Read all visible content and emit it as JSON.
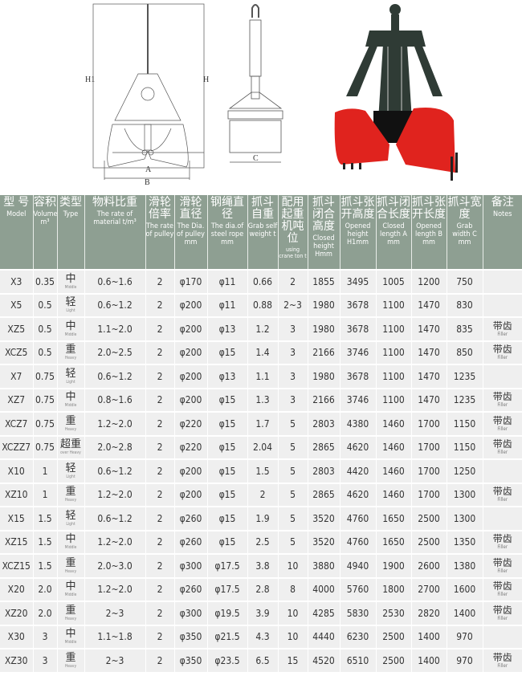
{
  "diagram_labels": {
    "h1": "H1",
    "h": "H",
    "a": "A",
    "b": "B",
    "c": "C"
  },
  "colors": {
    "header_bg": "#8e9f92",
    "row_bg": "#efefef",
    "grab_red": "#e0231e",
    "grab_frame": "#2f3b35"
  },
  "table": {
    "headers": [
      {
        "cn": "型 号",
        "en": "Model"
      },
      {
        "cn": "容积",
        "en": "Volume m³"
      },
      {
        "cn": "类型",
        "en": "Type"
      },
      {
        "cn": "物料比重",
        "en": "The rate of material t/m³"
      },
      {
        "cn": "滑轮倍率",
        "en": "The rate of pulley"
      },
      {
        "cn": "滑轮直径",
        "en": "The Dia. of pulley mm"
      },
      {
        "cn": "钢绳直径",
        "en": "The dia.of steel rope mm"
      },
      {
        "cn": "抓斗自重",
        "en": "Grab self weight t"
      },
      {
        "cn": "配用起重机吨位",
        "en": "using crane ton t"
      },
      {
        "cn": "抓斗闭合高度",
        "en": "Closed height Hmm"
      },
      {
        "cn": "抓斗张开高度",
        "en": "Opened height H1mm"
      },
      {
        "cn": "抓斗闭合长度",
        "en": "Closed length A mm"
      },
      {
        "cn": "抓斗张开长度",
        "en": "Opened length B mm"
      },
      {
        "cn": "抓斗宽度",
        "en": "Grab width C mm"
      },
      {
        "cn": "备注",
        "en": "Notes"
      }
    ],
    "rows": [
      {
        "model": "X3",
        "volume": "0.35",
        "type_cn": "中",
        "type_en": "Middle",
        "material": "0.6~1.6",
        "pulley_rate": "2",
        "pulley_dia": "φ170",
        "rope_dia": "φ11",
        "weight": "0.66",
        "crane": "2",
        "closed_h": "1855",
        "opened_h": "3495",
        "closed_l": "1005",
        "opened_l": "1200",
        "width": "750",
        "note_cn": "",
        "note_en": ""
      },
      {
        "model": "X5",
        "volume": "0.5",
        "type_cn": "轻",
        "type_en": "Light",
        "material": "0.6~1.2",
        "pulley_rate": "2",
        "pulley_dia": "φ200",
        "rope_dia": "φ11",
        "weight": "0.88",
        "crane": "2~3",
        "closed_h": "1980",
        "opened_h": "3678",
        "closed_l": "1100",
        "opened_l": "1470",
        "width": "830",
        "note_cn": "",
        "note_en": ""
      },
      {
        "model": "XZ5",
        "volume": "0.5",
        "type_cn": "中",
        "type_en": "Middle",
        "material": "1.1~2.0",
        "pulley_rate": "2",
        "pulley_dia": "φ200",
        "rope_dia": "φ13",
        "weight": "1.2",
        "crane": "3",
        "closed_h": "1980",
        "opened_h": "3678",
        "closed_l": "1100",
        "opened_l": "1470",
        "width": "835",
        "note_cn": "带齿",
        "note_en": "Filler"
      },
      {
        "model": "XCZ5",
        "volume": "0.5",
        "type_cn": "重",
        "type_en": "Heavy",
        "material": "2.0~2.5",
        "pulley_rate": "2",
        "pulley_dia": "φ200",
        "rope_dia": "φ15",
        "weight": "1.4",
        "crane": "3",
        "closed_h": "2166",
        "opened_h": "3746",
        "closed_l": "1100",
        "opened_l": "1470",
        "width": "850",
        "note_cn": "带齿",
        "note_en": "Filler"
      },
      {
        "model": "X7",
        "volume": "0.75",
        "type_cn": "轻",
        "type_en": "Light",
        "material": "0.6~1.2",
        "pulley_rate": "2",
        "pulley_dia": "φ200",
        "rope_dia": "φ13",
        "weight": "1.1",
        "crane": "3",
        "closed_h": "1980",
        "opened_h": "3678",
        "closed_l": "1100",
        "opened_l": "1470",
        "width": "1235",
        "note_cn": "",
        "note_en": ""
      },
      {
        "model": "XZ7",
        "volume": "0.75",
        "type_cn": "中",
        "type_en": "Middle",
        "material": "0.8~1.6",
        "pulley_rate": "2",
        "pulley_dia": "φ200",
        "rope_dia": "φ15",
        "weight": "1.3",
        "crane": "3",
        "closed_h": "2166",
        "opened_h": "3746",
        "closed_l": "1100",
        "opened_l": "1470",
        "width": "1235",
        "note_cn": "带齿",
        "note_en": "Filler"
      },
      {
        "model": "XCZ7",
        "volume": "0.75",
        "type_cn": "重",
        "type_en": "Heavy",
        "material": "1.2~2.0",
        "pulley_rate": "2",
        "pulley_dia": "φ220",
        "rope_dia": "φ15",
        "weight": "1.7",
        "crane": "5",
        "closed_h": "2803",
        "opened_h": "4380",
        "closed_l": "1460",
        "opened_l": "1700",
        "width": "1150",
        "note_cn": "带齿",
        "note_en": "Filler"
      },
      {
        "model": "XCZZ7",
        "volume": "0.75",
        "type_cn": "超重",
        "type_en": "over Heavy",
        "material": "2.0~2.8",
        "pulley_rate": "2",
        "pulley_dia": "φ220",
        "rope_dia": "φ15",
        "weight": "2.04",
        "crane": "5",
        "closed_h": "2865",
        "opened_h": "4620",
        "closed_l": "1460",
        "opened_l": "1700",
        "width": "1150",
        "note_cn": "带齿",
        "note_en": "Filler"
      },
      {
        "model": "X10",
        "volume": "1",
        "type_cn": "轻",
        "type_en": "Light",
        "material": "0.6~1.2",
        "pulley_rate": "2",
        "pulley_dia": "φ200",
        "rope_dia": "φ15",
        "weight": "1.5",
        "crane": "5",
        "closed_h": "2803",
        "opened_h": "4420",
        "closed_l": "1460",
        "opened_l": "1700",
        "width": "1250",
        "note_cn": "",
        "note_en": ""
      },
      {
        "model": "XZ10",
        "volume": "1",
        "type_cn": "重",
        "type_en": "Heavy",
        "material": "1.2~2.0",
        "pulley_rate": "2",
        "pulley_dia": "φ200",
        "rope_dia": "φ15",
        "weight": "2",
        "crane": "5",
        "closed_h": "2865",
        "opened_h": "4620",
        "closed_l": "1460",
        "opened_l": "1700",
        "width": "1300",
        "note_cn": "带齿",
        "note_en": "Filler"
      },
      {
        "model": "X15",
        "volume": "1.5",
        "type_cn": "轻",
        "type_en": "Light",
        "material": "0.6~1.2",
        "pulley_rate": "2",
        "pulley_dia": "φ260",
        "rope_dia": "φ15",
        "weight": "1.9",
        "crane": "5",
        "closed_h": "3520",
        "opened_h": "4760",
        "closed_l": "1650",
        "opened_l": "2500",
        "width": "1300",
        "note_cn": "",
        "note_en": ""
      },
      {
        "model": "XZ15",
        "volume": "1.5",
        "type_cn": "中",
        "type_en": "Middle",
        "material": "1.2~2.0",
        "pulley_rate": "2",
        "pulley_dia": "φ260",
        "rope_dia": "φ15",
        "weight": "2.5",
        "crane": "5",
        "closed_h": "3520",
        "opened_h": "4760",
        "closed_l": "1650",
        "opened_l": "2500",
        "width": "1350",
        "note_cn": "带齿",
        "note_en": "Filler"
      },
      {
        "model": "XCZ15",
        "volume": "1.5",
        "type_cn": "重",
        "type_en": "Heavy",
        "material": "2.0~3.0",
        "pulley_rate": "2",
        "pulley_dia": "φ300",
        "rope_dia": "φ17.5",
        "weight": "3.8",
        "crane": "10",
        "closed_h": "3880",
        "opened_h": "4940",
        "closed_l": "1900",
        "opened_l": "2600",
        "width": "1380",
        "note_cn": "带齿",
        "note_en": "Filler"
      },
      {
        "model": "X20",
        "volume": "2.0",
        "type_cn": "中",
        "type_en": "Middle",
        "material": "1.2~2.0",
        "pulley_rate": "2",
        "pulley_dia": "φ260",
        "rope_dia": "φ17.5",
        "weight": "2.8",
        "crane": "8",
        "closed_h": "4000",
        "opened_h": "5760",
        "closed_l": "1800",
        "opened_l": "2700",
        "width": "1600",
        "note_cn": "带齿",
        "note_en": "Filler"
      },
      {
        "model": "XZ20",
        "volume": "2.0",
        "type_cn": "重",
        "type_en": "Heavy",
        "material": "2~3",
        "pulley_rate": "2",
        "pulley_dia": "φ300",
        "rope_dia": "φ19.5",
        "weight": "3.9",
        "crane": "10",
        "closed_h": "4285",
        "opened_h": "5830",
        "closed_l": "2530",
        "opened_l": "2820",
        "width": "1400",
        "note_cn": "带齿",
        "note_en": "Filler"
      },
      {
        "model": "X30",
        "volume": "3",
        "type_cn": "中",
        "type_en": "Middle",
        "material": "1.1~1.8",
        "pulley_rate": "2",
        "pulley_dia": "φ350",
        "rope_dia": "φ21.5",
        "weight": "4.3",
        "crane": "10",
        "closed_h": "4440",
        "opened_h": "6230",
        "closed_l": "2500",
        "opened_l": "1400",
        "width": "970",
        "note_cn": "",
        "note_en": ""
      },
      {
        "model": "XZ30",
        "volume": "3",
        "type_cn": "重",
        "type_en": "Heavy",
        "material": "2~3",
        "pulley_rate": "2",
        "pulley_dia": "φ350",
        "rope_dia": "φ23.5",
        "weight": "6.5",
        "crane": "15",
        "closed_h": "4520",
        "opened_h": "6510",
        "closed_l": "2500",
        "opened_l": "1400",
        "width": "970",
        "note_cn": "带齿",
        "note_en": "Filler"
      }
    ]
  }
}
